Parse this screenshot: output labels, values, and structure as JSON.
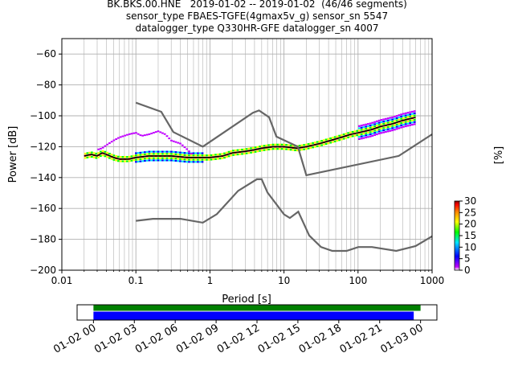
{
  "title_lines": [
    "BK.BKS.00.HNE   2019-01-02 -- 2019-01-02  (46/46 segments)",
    "sensor_type FBAES-TGFE(4gmax5v_g) sensor_sn 5547",
    "datalogger_type Q330HR-GFE datalogger_sn 4007"
  ],
  "chart_data": [
    {
      "type": "heatmap",
      "chart_kind": "probabilistic power spectral density",
      "xlabel": "Period [s]",
      "ylabel": "Power [dB]",
      "xscale": "log",
      "xlim": [
        0.01,
        1000
      ],
      "ylim": [
        -200,
        -50
      ],
      "xticks": [
        0.01,
        0.1,
        1,
        10,
        100,
        1000
      ],
      "xtick_labels": [
        "0.01",
        "0.1",
        "1",
        "10",
        "100",
        "1000"
      ],
      "yticks": [
        -60,
        -80,
        -100,
        -120,
        -140,
        -160,
        -180,
        -200
      ],
      "ytick_labels": [
        "−60",
        "−80",
        "−100",
        "−120",
        "−140",
        "−160",
        "−180",
        "−200"
      ],
      "grid": true,
      "noise_model_high": {
        "x": [
          0.1,
          0.22,
          0.32,
          0.8,
          3.8,
          4.6,
          6.3,
          7.9,
          15.4,
          20,
          354.8,
          1000
        ],
        "y": [
          -91.5,
          -97.4,
          -110.5,
          -120,
          -98,
          -96.5,
          -101,
          -113.5,
          -120,
          -138.5,
          -126,
          -112
        ]
      },
      "noise_model_low": {
        "x": [
          0.1,
          0.17,
          0.4,
          0.8,
          1.24,
          2.4,
          4.3,
          5,
          6,
          10,
          12,
          15.6,
          21.9,
          31.6,
          45,
          70,
          101,
          154,
          328,
          600,
          1000
        ],
        "y": [
          -168,
          -166.7,
          -166.7,
          -169.2,
          -163.7,
          -148.6,
          -141.1,
          -141.1,
          -149.7,
          -163.8,
          -166.2,
          -162.1,
          -177.5,
          -185,
          -187.5,
          -187.5,
          -185,
          -185,
          -187.5,
          -184.4,
          -178
        ]
      },
      "mode_curve": {
        "x": [
          0.02,
          0.025,
          0.03,
          0.035,
          0.04,
          0.05,
          0.06,
          0.08,
          0.1,
          0.15,
          0.2,
          0.3,
          0.5,
          0.8,
          1,
          1.5,
          2,
          3,
          4,
          5,
          7,
          10,
          15,
          20,
          30,
          50,
          80,
          100,
          150,
          200,
          300,
          400,
          600
        ],
        "y": [
          -126,
          -125,
          -126,
          -124,
          -125,
          -127,
          -128,
          -128,
          -127,
          -126,
          -126,
          -126,
          -127,
          -127,
          -127,
          -126,
          -124,
          -123,
          -122,
          -121,
          -120,
          -120,
          -121,
          -120,
          -118,
          -115,
          -112,
          -111,
          -109,
          -107,
          -105,
          -103,
          -101
        ]
      },
      "upper_envelope": {
        "x": [
          0.03,
          0.035,
          0.04,
          0.05,
          0.06,
          0.08,
          0.1,
          0.12,
          0.15,
          0.2,
          0.25,
          0.3,
          0.4,
          0.5,
          0.6
        ],
        "y": [
          -122,
          -121,
          -119,
          -116,
          -114,
          -112,
          -111,
          -113,
          -112,
          -110,
          -112,
          -116,
          -118,
          -122,
          -126
        ]
      },
      "colorbar": {
        "label": "[%]",
        "range": [
          0,
          30
        ],
        "ticks": [
          0,
          5,
          10,
          15,
          20,
          25,
          30
        ],
        "colormap": [
          "#ffffff",
          "#c000ff",
          "#0000ff",
          "#00e5ff",
          "#00ff00",
          "#ffff00",
          "#ff8000",
          "#ff0000",
          "#800000"
        ]
      }
    },
    {
      "type": "bar",
      "chart_kind": "data coverage timeline",
      "xtick_labels": [
        "01-02 00",
        "01-02 03",
        "01-02 06",
        "01-02 09",
        "01-02 12",
        "01-02 15",
        "01-02 18",
        "01-02 21",
        "01-03 00"
      ],
      "x_hours": [
        0,
        3,
        6,
        9,
        12,
        15,
        18,
        21,
        24
      ],
      "xlim_hours": [
        -1.2,
        25.2
      ],
      "series": [
        {
          "start_hour": 0,
          "end_hour": 24.0,
          "color": "#008000"
        },
        {
          "start_hour": 0,
          "end_hour": 23.5,
          "color": "#0000ff"
        }
      ]
    }
  ]
}
